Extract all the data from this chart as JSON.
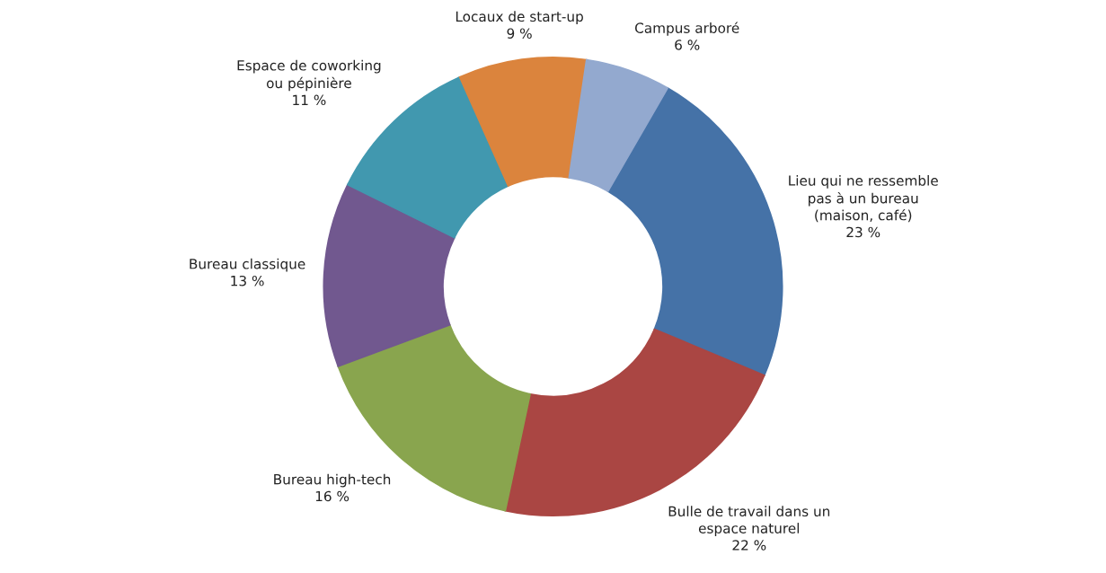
{
  "chart_data": {
    "type": "donut",
    "categories": [
      "Lieu qui ne ressemble\npas à un bureau\n(maison, café)",
      "Bulle de travail dans un\nespace naturel",
      "Bureau high-tech",
      "Bureau classique",
      "Espace de coworking\nou pépinière",
      "Locaux de start-up",
      "Campus arboré"
    ],
    "values": [
      23,
      22,
      16,
      13,
      11,
      9,
      6
    ],
    "value_labels": [
      "23 %",
      "22 %",
      "16 %",
      "13 %",
      "11 %",
      "9 %",
      "6 %"
    ],
    "colors": [
      "#4572a7",
      "#aa4643",
      "#89a54e",
      "#71588f",
      "#4198af",
      "#db843d",
      "#93a9cf"
    ],
    "legend": false
  }
}
